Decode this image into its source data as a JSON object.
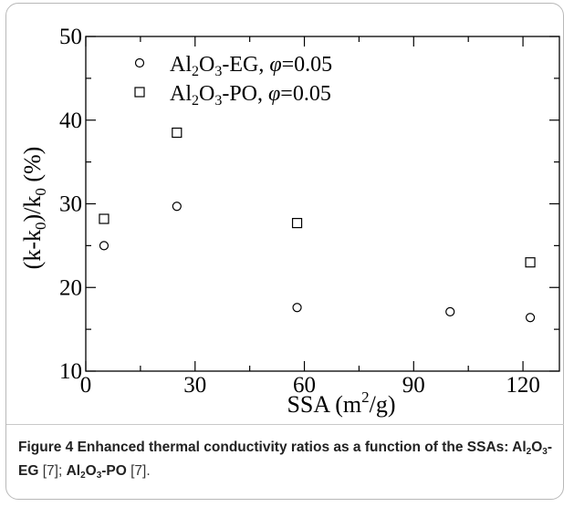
{
  "chart_data": {
    "type": "scatter",
    "xlabel": "SSA (m",
    "xlabel_sup": "2",
    "xlabel_tail": "/g)",
    "ylabel_parts": {
      "a": "(k-k",
      "b": "0",
      "c": ")/k",
      "d": "0",
      "e": " (%)"
    },
    "xlim": [
      0,
      130
    ],
    "ylim": [
      10,
      50
    ],
    "x_ticks": [
      0,
      30,
      60,
      90,
      120
    ],
    "y_ticks": [
      10,
      20,
      30,
      40,
      50
    ],
    "legend_position": "top-left",
    "series": [
      {
        "name": "Al2O3-EG, φ=0.05",
        "marker": "circle",
        "legend": {
          "pre": "Al",
          "s1": "2",
          "mid": "O",
          "s2": "3",
          "post": "-EG, ",
          "phi": "φ",
          "val": "=0.05"
        },
        "x": [
          5,
          25,
          58,
          100,
          122
        ],
        "y": [
          25.0,
          29.7,
          17.6,
          17.1,
          16.4
        ]
      },
      {
        "name": "Al2O3-PO, φ=0.05",
        "marker": "square",
        "legend": {
          "pre": "Al",
          "s1": "2",
          "mid": "O",
          "s2": "3",
          "post": "-PO, ",
          "phi": "φ",
          "val": "=0.05"
        },
        "x": [
          5,
          25,
          58,
          122
        ],
        "y": [
          28.2,
          38.5,
          27.7,
          23.0
        ]
      }
    ]
  },
  "caption": {
    "lead": "Figure 4 Enhanced thermal conductivity ratios as a function of the SSAs: ",
    "m1_pre": "Al",
    "m1_s1": "2",
    "m1_mid": "O",
    "m1_s2": "3",
    "m1_post": "-EG",
    "ref1": " [7]; ",
    "m2_pre": "Al",
    "m2_s1": "2",
    "m2_mid": "O",
    "m2_s2": "3",
    "m2_post": "-PO",
    "ref2": " [7]."
  }
}
